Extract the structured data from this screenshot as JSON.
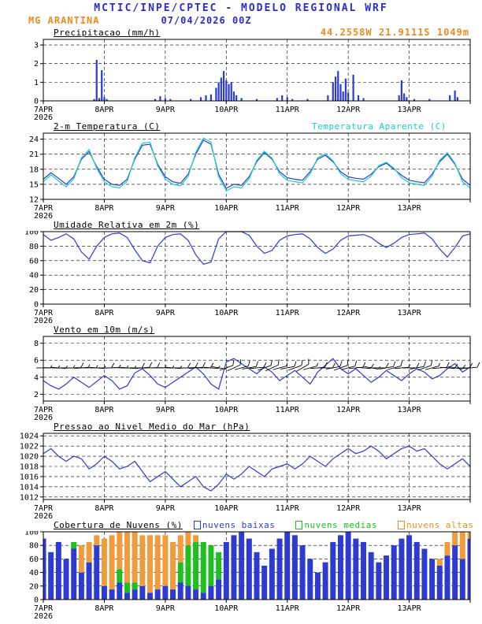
{
  "header": {
    "title": "MCTIC/INPE/CPTEC - MODELO REGIONAL WRF",
    "station": "MG ARANTINA",
    "run": "07/04/2026 00Z",
    "location": "44.2558W 21.9111S 1049m"
  },
  "x_axis": {
    "tick_labels": [
      "7APR",
      "8APR",
      "9APR",
      "10APR",
      "11APR",
      "12APR",
      "13APR"
    ],
    "tick_hours": [
      0,
      24,
      48,
      72,
      96,
      120,
      144
    ],
    "year_label": "2026",
    "hours_range": [
      0,
      168
    ],
    "step_hours": 3
  },
  "colors": {
    "title_blue": "#2a2ec4",
    "orange": "#ef8a1f",
    "line_blue": "#2d3bd0",
    "cyan": "#18cfc4",
    "green": "#1fbf1f",
    "cloud_high": "#f29b3d",
    "black": "#000000"
  },
  "chart_data": [
    {
      "type": "bar",
      "title": "Precipitacao (mm/h)",
      "ylabel": "mm/h",
      "ylim": [
        0,
        3.3
      ],
      "yticks": [
        0,
        1,
        2,
        3
      ],
      "bar_color": "#2d3bd0",
      "bars": [
        [
          20,
          0.1
        ],
        [
          21,
          2.2
        ],
        [
          22,
          0.15
        ],
        [
          23,
          1.65
        ],
        [
          24,
          0.2
        ],
        [
          25,
          0.1
        ],
        [
          44,
          0.1
        ],
        [
          46,
          0.25
        ],
        [
          48,
          0.15
        ],
        [
          50,
          0.1
        ],
        [
          58,
          0.1
        ],
        [
          62,
          0.2
        ],
        [
          64,
          0.3
        ],
        [
          66,
          0.35
        ],
        [
          68,
          0.7
        ],
        [
          69,
          1.0
        ],
        [
          70,
          1.25
        ],
        [
          71,
          1.6
        ],
        [
          72,
          1.1
        ],
        [
          73,
          0.9
        ],
        [
          74,
          1.0
        ],
        [
          75,
          0.5
        ],
        [
          76,
          0.3
        ],
        [
          78,
          0.15
        ],
        [
          84,
          0.1
        ],
        [
          92,
          0.15
        ],
        [
          94,
          0.3
        ],
        [
          96,
          0.2
        ],
        [
          98,
          0.1
        ],
        [
          104,
          0.1
        ],
        [
          112,
          0.3
        ],
        [
          114,
          1.0
        ],
        [
          115,
          1.3
        ],
        [
          116,
          1.6
        ],
        [
          117,
          0.9
        ],
        [
          118,
          0.5
        ],
        [
          119,
          1.2
        ],
        [
          120,
          0.45
        ],
        [
          122,
          1.4
        ],
        [
          124,
          0.3
        ],
        [
          126,
          0.15
        ],
        [
          140,
          0.3
        ],
        [
          141,
          1.1
        ],
        [
          142,
          0.4
        ],
        [
          143,
          0.2
        ],
        [
          146,
          0.1
        ],
        [
          152,
          0.1
        ],
        [
          160,
          0.3
        ],
        [
          162,
          0.55
        ],
        [
          163,
          0.2
        ]
      ]
    },
    {
      "type": "line",
      "title": "2-m Temperatura (C)",
      "legend": "Temperatura Aparente (C)",
      "ylim": [
        12,
        25.2
      ],
      "yticks": [
        12,
        15,
        18,
        21,
        24
      ],
      "series": [
        {
          "name": "2-m Temperatura (C)",
          "color": "#2d3bd0",
          "values": [
            16.0,
            17.3,
            16.2,
            15.0,
            16.5,
            20.0,
            21.5,
            18.5,
            16.0,
            15.0,
            14.8,
            16.0,
            20.0,
            22.8,
            23.0,
            19.0,
            16.5,
            15.5,
            15.2,
            17.0,
            21.0,
            23.8,
            23.0,
            17.0,
            14.2,
            15.0,
            14.8,
            16.5,
            19.5,
            21.3,
            20.0,
            17.5,
            16.3,
            16.0,
            15.8,
            17.5,
            20.0,
            20.8,
            19.5,
            17.5,
            16.5,
            16.2,
            16.0,
            17.0,
            18.5,
            19.2,
            18.0,
            16.8,
            15.8,
            15.5,
            15.3,
            17.0,
            19.5,
            21.0,
            19.0,
            16.0,
            14.8
          ]
        },
        {
          "name": "Temperatura Aparente (C)",
          "color": "#18cfc4",
          "values": [
            15.5,
            16.9,
            15.7,
            14.5,
            16.1,
            20.3,
            21.9,
            18.2,
            15.5,
            14.5,
            14.3,
            15.6,
            20.3,
            23.2,
            23.4,
            18.7,
            16.0,
            15.0,
            14.7,
            16.6,
            21.4,
            24.2,
            23.4,
            16.5,
            13.7,
            14.5,
            14.3,
            16.1,
            19.8,
            21.6,
            20.2,
            17.1,
            15.8,
            15.5,
            15.3,
            17.1,
            20.3,
            21.1,
            19.7,
            17.1,
            16.0,
            15.7,
            15.5,
            16.6,
            18.7,
            19.4,
            18.2,
            16.3,
            15.3,
            15.0,
            14.8,
            16.6,
            19.8,
            21.3,
            19.2,
            15.5,
            14.3
          ]
        }
      ]
    },
    {
      "type": "line",
      "title": "Umidade Relativa em 2m (%)",
      "ylim": [
        0,
        100
      ],
      "yticks": [
        0,
        20,
        40,
        60,
        80,
        100
      ],
      "series": [
        {
          "name": "Umidade Relativa em 2m (%)",
          "color": "#2d3bd0",
          "values": [
            96,
            88,
            92,
            97,
            90,
            72,
            62,
            80,
            92,
            97,
            98,
            92,
            75,
            60,
            57,
            80,
            92,
            96,
            97,
            88,
            68,
            55,
            58,
            90,
            100,
            100,
            100,
            95,
            80,
            70,
            74,
            88,
            94,
            96,
            97,
            90,
            78,
            70,
            76,
            88,
            94,
            95,
            96,
            92,
            84,
            78,
            84,
            92,
            96,
            97,
            98,
            90,
            76,
            65,
            78,
            94,
            97
          ]
        }
      ]
    },
    {
      "type": "line-barbs",
      "title": "Vento em 10m (m/s)",
      "ylim": [
        1.2,
        8.8
      ],
      "yticks": [
        2,
        4,
        6,
        8
      ],
      "barb_level": 5.1,
      "dirs": [
        90,
        92,
        95,
        90,
        88,
        85,
        90,
        95,
        90,
        88,
        92,
        95,
        90,
        85,
        88,
        90,
        92,
        95,
        90,
        88,
        85,
        90,
        95,
        100,
        70,
        65,
        75,
        80,
        85,
        70,
        65,
        75,
        80,
        70,
        60,
        75,
        85,
        90,
        80,
        70,
        75,
        85,
        95,
        100,
        90,
        80,
        75,
        85,
        90,
        80,
        70,
        75,
        85,
        95,
        100,
        90,
        85
      ],
      "series": [
        {
          "name": "Vento em 10m (m/s)",
          "color": "#2d3bd0",
          "values": [
            3.6,
            3.0,
            2.6,
            3.2,
            4.0,
            3.4,
            2.8,
            3.5,
            4.2,
            3.6,
            2.6,
            3.0,
            4.5,
            5.0,
            4.2,
            3.2,
            2.8,
            3.4,
            4.0,
            4.6,
            5.2,
            4.4,
            3.2,
            2.6,
            5.8,
            6.2,
            5.6,
            5.0,
            4.4,
            5.2,
            4.6,
            3.6,
            4.2,
            4.8,
            4.0,
            3.2,
            4.6,
            5.4,
            6.2,
            5.0,
            4.4,
            5.0,
            4.2,
            3.4,
            4.0,
            4.8,
            4.2,
            3.6,
            4.4,
            5.0,
            4.6,
            3.8,
            4.2,
            5.0,
            5.6,
            4.6,
            5.2
          ]
        }
      ]
    },
    {
      "type": "line",
      "title": "Pressao ao Nivel Medio do Mar (hPa)",
      "ylim": [
        1011.5,
        1024.5
      ],
      "yticks": [
        1012,
        1014,
        1016,
        1018,
        1020,
        1022,
        1024
      ],
      "series": [
        {
          "name": "Pressao ao Nivel Medio do Mar (hPa)",
          "color": "#2d3bd0",
          "values": [
            1020.5,
            1021.5,
            1020.0,
            1019.0,
            1020.0,
            1019.5,
            1017.5,
            1018.5,
            1020.0,
            1019.0,
            1017.5,
            1018.0,
            1019.0,
            1017.0,
            1015.0,
            1016.0,
            1017.0,
            1015.5,
            1014.0,
            1015.0,
            1016.0,
            1014.0,
            1013.2,
            1014.5,
            1016.5,
            1015.5,
            1016.5,
            1018.0,
            1017.0,
            1016.0,
            1017.5,
            1018.0,
            1018.5,
            1017.5,
            1018.5,
            1020.0,
            1019.0,
            1018.0,
            1019.5,
            1020.5,
            1021.5,
            1020.5,
            1021.0,
            1022.0,
            1021.0,
            1019.5,
            1020.5,
            1021.5,
            1022.0,
            1021.0,
            1021.5,
            1020.0,
            1018.5,
            1017.5,
            1018.5,
            1019.5,
            1018.0
          ]
        }
      ]
    },
    {
      "type": "stackedbar",
      "title": "Cobertura de Nuvens (%)",
      "ylim": [
        0,
        100
      ],
      "yticks": [
        0,
        20,
        40,
        60,
        80,
        100
      ],
      "series": [
        {
          "name": "nuvens baixas",
          "color": "#2d3bd0",
          "values": [
            90,
            70,
            85,
            60,
            75,
            40,
            55,
            80,
            20,
            15,
            25,
            10,
            15,
            20,
            10,
            15,
            20,
            15,
            25,
            20,
            15,
            10,
            20,
            30,
            85,
            95,
            100,
            90,
            70,
            50,
            75,
            90,
            100,
            95,
            80,
            60,
            40,
            55,
            85,
            95,
            100,
            90,
            85,
            70,
            55,
            65,
            80,
            90,
            95,
            85,
            75,
            60,
            50,
            65,
            80,
            60,
            90
          ]
        },
        {
          "name": "nuvens medias",
          "color": "#1fbf1f",
          "values": [
            0,
            0,
            0,
            0,
            10,
            0,
            0,
            0,
            0,
            0,
            20,
            15,
            10,
            0,
            0,
            0,
            0,
            0,
            30,
            60,
            70,
            75,
            60,
            40,
            0,
            0,
            0,
            0,
            0,
            0,
            0,
            0,
            0,
            0,
            0,
            0,
            0,
            0,
            0,
            0,
            0,
            0,
            0,
            0,
            0,
            0,
            0,
            0,
            0,
            0,
            0,
            0,
            0,
            0,
            0,
            0,
            0
          ]
        },
        {
          "name": "nuvens altas",
          "color": "#f29b3d",
          "values": [
            0,
            0,
            0,
            0,
            0,
            40,
            30,
            15,
            70,
            80,
            60,
            85,
            80,
            75,
            85,
            80,
            75,
            70,
            40,
            20,
            10,
            0,
            0,
            0,
            0,
            0,
            0,
            0,
            0,
            0,
            0,
            0,
            0,
            0,
            0,
            0,
            0,
            0,
            0,
            0,
            0,
            0,
            0,
            0,
            0,
            0,
            0,
            0,
            0,
            0,
            0,
            0,
            10,
            20,
            40,
            60,
            40
          ]
        }
      ]
    }
  ]
}
